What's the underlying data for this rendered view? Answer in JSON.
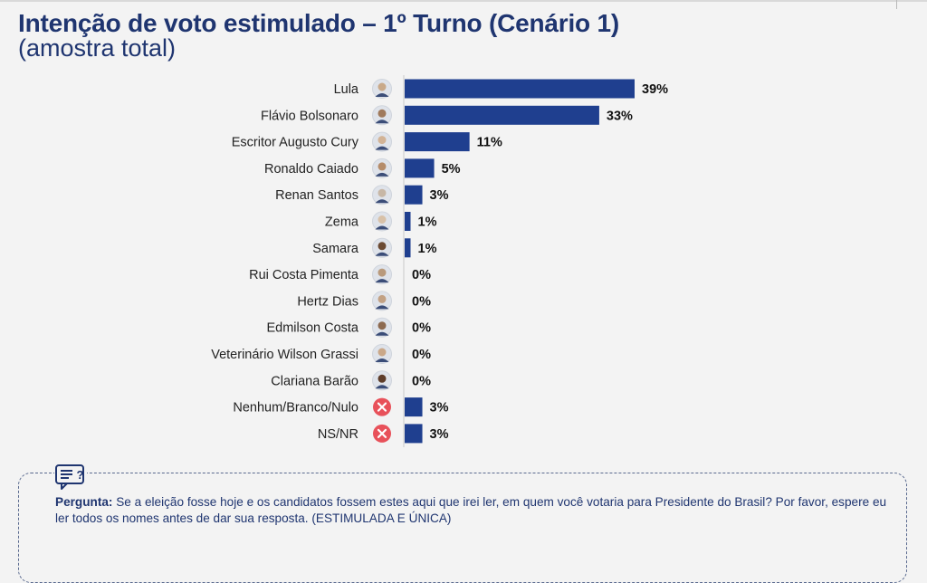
{
  "header": {
    "title": "Intenção de voto estimulado – 1º Turno (Cenário 1)",
    "subtitle": "(amostra total)"
  },
  "note": {
    "label": "Pergunta:",
    "text": " Se a eleição fosse hoje e os candidatos fossem estes aqui que irei ler, em quem você votaria para Presidente do Brasil? Por favor, espere eu ler todos os nomes antes de dar sua resposta. (ESTIMULADA E ÚNICA)",
    "icon": "speech-bubble-icon"
  },
  "colors": {
    "bar": "#1f3f8f",
    "title": "#1f3570",
    "x_icon": "#e8515a"
  },
  "chart_data": {
    "type": "bar",
    "orientation": "horizontal",
    "categories": [
      "Lula",
      "Flávio Bolsonaro",
      "Escritor Augusto Cury",
      "Ronaldo Caiado",
      "Renan Santos",
      "Zema",
      "Samara",
      "Rui Costa Pimenta",
      "Hertz Dias",
      "Edmilson Costa",
      "Veterinário Wilson Grassi",
      "Clariana Barão",
      "Nenhum/Branco/Nulo",
      "NS/NR"
    ],
    "values": [
      39,
      33,
      11,
      5,
      3,
      1,
      1,
      0,
      0,
      0,
      0,
      0,
      3,
      3
    ],
    "labels": [
      "39%",
      "33%",
      "11%",
      "5%",
      "3%",
      "1%",
      "1%",
      "0%",
      "0%",
      "0%",
      "0%",
      "0%",
      "3%",
      "3%"
    ],
    "icons": [
      "avatar",
      "avatar",
      "avatar",
      "avatar",
      "avatar",
      "avatar",
      "avatar",
      "avatar",
      "avatar",
      "avatar",
      "avatar",
      "avatar",
      "x-icon",
      "x-icon"
    ],
    "unit": "%",
    "xlim": [
      0,
      39
    ],
    "grid": false,
    "legend": "none"
  }
}
